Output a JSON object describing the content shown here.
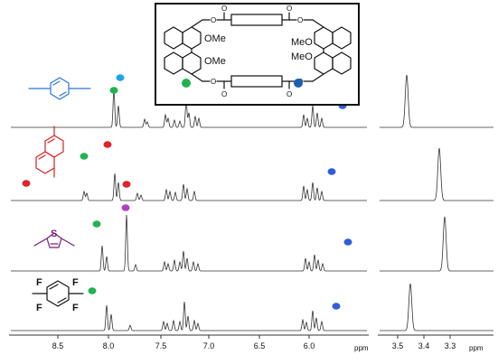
{
  "axes": {
    "main_ticks": [
      "8.5",
      "8.0",
      "7.5",
      "7.0",
      "6.5",
      "6.0"
    ],
    "main_unit": "ppm",
    "inset_ticks": [
      "3.5",
      "3.4",
      "3.3"
    ],
    "inset_unit": "ppm"
  },
  "structure": {
    "ome_left_1": "OMe",
    "ome_left_2": "OMe",
    "ome_right_1": "MeO",
    "ome_right_2": "MeO",
    "o_labels": [
      "O",
      "O",
      "O",
      "O",
      "O",
      "O",
      "O",
      "O"
    ]
  },
  "guests": {
    "row1_molecule": "4-methylphenyl (p-xylene)",
    "row2_molecule": "1,4-dimethylnaphthalene",
    "row3_atom": "S",
    "row4_atoms": [
      "F",
      "F",
      "F",
      "F"
    ]
  },
  "colors": {
    "blue_marker": "#2f5fd8",
    "cyan_marker": "#1ea3e8",
    "green_marker": "#21b34f",
    "red_marker": "#e0242a",
    "purple_marker": "#b040c0",
    "navy_marker": "#1a5fb4",
    "benzene_color": "#2a74d8",
    "naphthalene_color": "#d81e22",
    "thiophene_color": "#7a1c78",
    "fluoro_color": "#111111"
  }
}
